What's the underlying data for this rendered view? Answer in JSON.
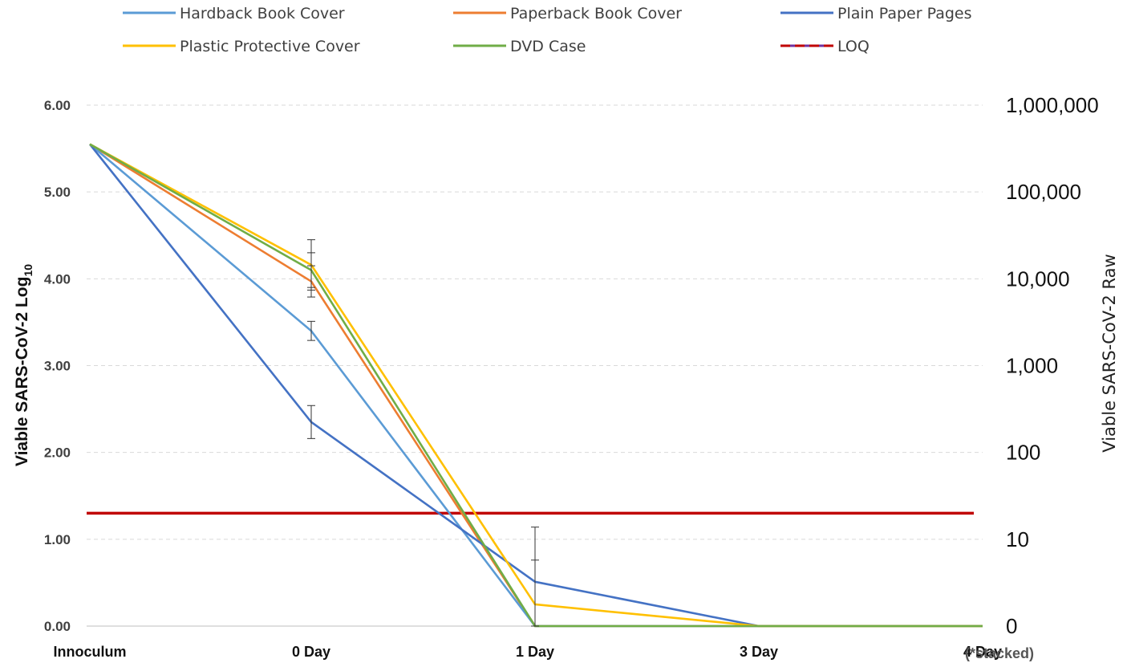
{
  "chart_data": {
    "type": "line",
    "categories": [
      "Innoculum",
      "0 Day",
      "1 Day",
      "3 Day",
      "4 Day"
    ],
    "ylabel_left": "Viable SARS-CoV-2 Log",
    "ylabel_left_subscript": "10",
    "ylabel_right": "Viable SARS-CoV-2 Raw",
    "ylim": [
      0,
      6
    ],
    "y_ticks_left": [
      "0.00",
      "1.00",
      "2.00",
      "3.00",
      "4.00",
      "5.00",
      "6.00"
    ],
    "y_ticks_right": [
      "0",
      "10",
      "100",
      "1,000",
      "10,000",
      "100,000",
      "1,000,000"
    ],
    "grid": "horizontal dashed",
    "legend_position": "top",
    "note": "(*stacked)",
    "series": [
      {
        "name": "Hardback Book Cover",
        "color": "#5B9BD5",
        "values": [
          5.55,
          3.4,
          0.0,
          0.0,
          0.0
        ],
        "error": [
          null,
          0.11,
          null,
          null,
          null
        ]
      },
      {
        "name": "Paperback Book Cover",
        "color": "#ED7D31",
        "values": [
          5.55,
          3.97,
          0.0,
          0.0,
          0.0
        ],
        "error": [
          null,
          0.18,
          null,
          null,
          null
        ]
      },
      {
        "name": "Plain Paper Pages",
        "color": "#4472C4",
        "values": [
          5.55,
          2.35,
          0.51,
          0.0,
          0.0
        ],
        "error": [
          null,
          0.19,
          0.63,
          null,
          null
        ]
      },
      {
        "name": "Plastic Protective Cover",
        "color": "#FFC000",
        "values": [
          5.55,
          4.16,
          0.25,
          0.0,
          0.0
        ],
        "error": [
          null,
          0.29,
          0.51,
          null,
          null
        ]
      },
      {
        "name": "DVD Case",
        "color": "#70AD47",
        "values": [
          5.55,
          4.1,
          0.0,
          0.0,
          0.0
        ],
        "error": [
          null,
          0.2,
          null,
          null,
          null
        ]
      }
    ],
    "reference_lines": [
      {
        "name": "LOQ",
        "value": 1.3,
        "color": "#C00000"
      }
    ]
  }
}
